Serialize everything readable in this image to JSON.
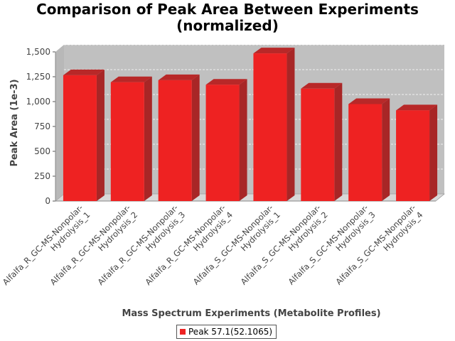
{
  "chart_data": {
    "type": "bar",
    "title": "Comparison of Peak Area Between Experiments",
    "subtitle": "(normalized)",
    "xlabel": "Mass Spectrum Experiments (Metabolite Profiles)",
    "ylabel": "Peak Area (1e-3)",
    "ylim": [
      0,
      1500
    ],
    "yticks": [
      "0",
      "250",
      "500",
      "750",
      "1,000",
      "1,250",
      "1,500"
    ],
    "grid": true,
    "legend_position": "bottom",
    "categories": [
      [
        "Alfalfa_R_GC-MS-Nonpolar-",
        "Hydrolysis_1"
      ],
      [
        "Alfalfa_R_GC-MS-Nonpolar-",
        "Hydrolysis_2"
      ],
      [
        "Alfalfa_R_GC-MS-Nonpolar-",
        "Hydrolysis_3"
      ],
      [
        "Alfalfa_R_GC-MS-Nonpolar-",
        "Hydrolysis_4"
      ],
      [
        "Alfalfa_S_GC-MS-Nonpolar-",
        "Hydrolysis_1"
      ],
      [
        "Alfalfa_S_GC-MS-Nonpolar-",
        "Hydrolysis_2"
      ],
      [
        "Alfalfa_S_GC-MS-Nonpolar-",
        "Hydrolysis_3"
      ],
      [
        "Alfalfa_S_GC-MS-Nonpolar-",
        "Hydrolysis_4"
      ]
    ],
    "series": [
      {
        "name": "Peak 57.1(52.1065)",
        "color": "#ee2222",
        "values": [
          1265,
          1195,
          1215,
          1170,
          1485,
          1130,
          975,
          912
        ]
      }
    ]
  }
}
